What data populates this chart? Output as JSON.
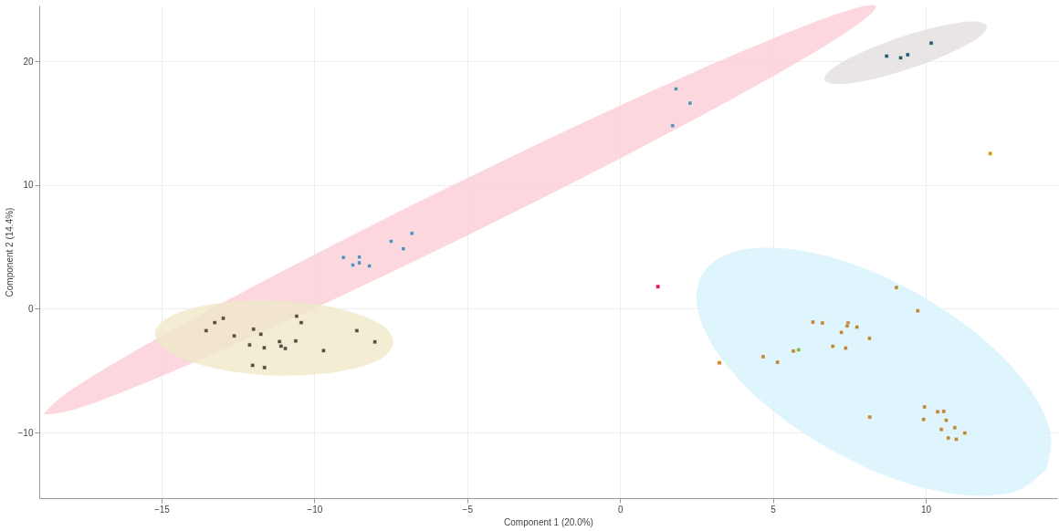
{
  "chart_data": {
    "type": "scatter",
    "xlabel": "Component 1 (20.0%)",
    "ylabel": "Component 2 (14.4%)",
    "xlim": [
      -19,
      14.3
    ],
    "ylim": [
      -15.3,
      24.5
    ],
    "xticks": [
      -15,
      -10,
      -5,
      0,
      5,
      10
    ],
    "yticks": [
      -10,
      0,
      10,
      20
    ],
    "grid": true,
    "marker": "square",
    "series": [
      {
        "type": "area",
        "marker": "none",
        "color": "#fbcdd6",
        "x": [
          -18.85,
          -17.66,
          -14.59,
          -10.09,
          -4.85,
          0.33,
          4.66,
          7.49,
          8.37,
          7.19,
          4.11,
          -0.38,
          -5.62,
          -10.8,
          -15.13,
          -17.96,
          -18.85
        ],
        "values": [
          -8.53,
          -7.99,
          -5.01,
          -0.07,
          6.1,
          12.56,
          18.3,
          22.48,
          24.44,
          23.9,
          20.92,
          15.99,
          9.81,
          3.35,
          -2.39,
          -6.57,
          -8.53
        ]
      },
      {
        "type": "area",
        "marker": "none",
        "color": "#efe8c8",
        "x": [
          -7.4,
          -7.71,
          -8.57,
          -9.85,
          -11.35,
          -12.84,
          -14.09,
          -14.93,
          -15.21,
          -14.89,
          -14.03,
          -12.76,
          -11.26,
          -9.76,
          -8.51,
          -7.67,
          -7.4
        ],
        "values": [
          -2.72,
          -3.85,
          -4.75,
          -5.28,
          -5.38,
          -5.01,
          -4.24,
          -3.19,
          -2.01,
          -0.88,
          0.01,
          0.55,
          0.65,
          0.28,
          -0.49,
          -1.54,
          -2.72
        ]
      },
      {
        "type": "area",
        "marker": "none",
        "color": "#e2dedd",
        "x": [
          12.01,
          11.88,
          11.36,
          10.53,
          9.52,
          8.49,
          7.59,
          6.95,
          6.69,
          6.82,
          7.34,
          8.17,
          9.17,
          10.21,
          11.11,
          11.74,
          12.01
        ],
        "values": [
          22.87,
          22.22,
          21.34,
          20.36,
          19.43,
          18.68,
          18.24,
          18.18,
          18.49,
          19.14,
          20.02,
          21.0,
          21.94,
          22.68,
          23.12,
          23.18,
          22.87
        ]
      },
      {
        "type": "area",
        "marker": "none",
        "color": "#d6f3fc",
        "x": [
          13.94,
          12.94,
          11.24,
          9.1,
          6.83,
          4.79,
          3.29,
          2.55,
          2.69,
          3.68,
          5.38,
          7.53,
          9.8,
          11.84,
          13.34,
          14.08,
          13.94
        ],
        "values": [
          -12.96,
          -14.75,
          -15.05,
          -13.86,
          -11.31,
          -7.82,
          -3.93,
          -0.19,
          2.78,
          4.57,
          4.87,
          3.68,
          1.13,
          -2.36,
          -6.25,
          -9.99,
          -12.96
        ]
      },
      {
        "color": "#5c4a36",
        "x": [
          -13.54,
          -13.26,
          -12.98,
          -12.62,
          -11.99,
          -11.75,
          -12.12,
          -11.64,
          -11.14,
          -11.09,
          -10.95,
          -10.61,
          -10.58,
          -10.43,
          -9.7,
          -8.61,
          -8.02,
          -12.02,
          -11.63
        ],
        "values": [
          -1.77,
          -1.12,
          -0.77,
          -2.19,
          -1.65,
          -2.06,
          -2.92,
          -3.15,
          -2.65,
          -3.02,
          -3.21,
          -2.6,
          -0.6,
          -1.12,
          -3.38,
          -1.77,
          -2.68,
          -4.57,
          -4.75
        ]
      },
      {
        "color": "#5b8db8",
        "x": [
          -9.05,
          -8.74,
          -8.53,
          -8.53,
          -8.2,
          -7.49,
          -7.09,
          -6.81,
          1.83,
          2.29,
          1.72
        ],
        "values": [
          4.14,
          3.53,
          4.18,
          3.71,
          3.46,
          5.45,
          4.85,
          6.09,
          17.76,
          16.61,
          14.79
        ]
      },
      {
        "color": "#1f5a6e",
        "x": [
          8.72,
          9.18,
          9.41,
          10.18
        ],
        "values": [
          20.41,
          20.27,
          20.52,
          21.46
        ]
      },
      {
        "color": "#c8a000",
        "x": [
          12.11
        ],
        "values": [
          12.54
        ]
      },
      {
        "color": "#e8104a",
        "x": [
          1.24
        ],
        "values": [
          1.79
        ]
      },
      {
        "color": "#e07b1a",
        "x": [
          3.25
        ],
        "values": [
          -4.37
        ]
      },
      {
        "color": "#7cba3a",
        "x": [
          5.84
        ],
        "values": [
          -3.32
        ]
      },
      {
        "color": "#b8873a",
        "x": [
          9.04,
          9.74,
          6.31,
          6.62,
          7.46,
          7.43,
          7.75,
          7.24,
          8.16,
          6.96,
          7.38,
          5.67,
          4.68,
          5.15,
          8.17,
          9.96,
          10.39,
          10.59,
          9.93,
          10.67,
          10.51,
          10.95,
          11.28,
          10.74,
          11.0
        ],
        "values": [
          1.72,
          -0.17,
          -1.08,
          -1.15,
          -1.15,
          -1.38,
          -1.48,
          -1.91,
          -2.39,
          -3.03,
          -3.18,
          -3.42,
          -3.87,
          -4.32,
          -8.75,
          -7.93,
          -8.32,
          -8.29,
          -8.94,
          -9.01,
          -9.75,
          -9.61,
          -10.04,
          -10.44,
          -10.54
        ]
      }
    ]
  }
}
